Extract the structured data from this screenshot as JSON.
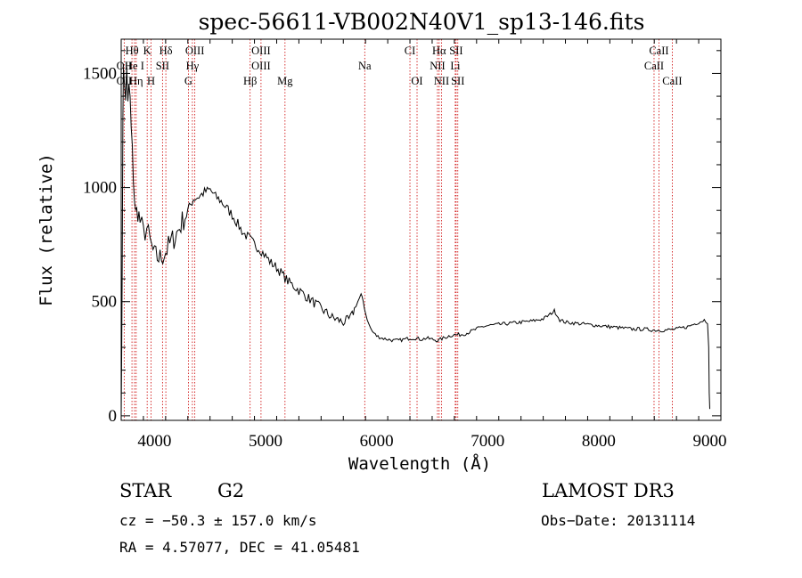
{
  "chart_data": {
    "type": "line",
    "title": "spec-56611-VB002N40V1_sp13-146.fits",
    "xlabel": "Wavelength (Å)",
    "ylabel": "Flux (relative)",
    "xlim": [
      3700,
      9100
    ],
    "ylim": [
      -20,
      1650
    ],
    "xticks": [
      4000,
      5000,
      6000,
      7000,
      8000,
      9000
    ],
    "yticks": [
      0,
      500,
      1000,
      1500
    ],
    "series": [
      {
        "name": "flux",
        "x": [
          3700,
          3705,
          3710,
          3715,
          3720,
          3730,
          3740,
          3750,
          3760,
          3770,
          3780,
          3790,
          3800,
          3810,
          3820,
          3830,
          3850,
          3870,
          3900,
          3930,
          3960,
          4000,
          4050,
          4100,
          4150,
          4200,
          4250,
          4300,
          4350,
          4400,
          4450,
          4500,
          4550,
          4600,
          4650,
          4700,
          4750,
          4800,
          4850,
          4900,
          4950,
          5000,
          5050,
          5100,
          5150,
          5200,
          5250,
          5300,
          5350,
          5400,
          5450,
          5500,
          5550,
          5600,
          5650,
          5700,
          5750,
          5780,
          5800,
          5830,
          5860,
          5880,
          5900,
          5930,
          5960,
          6000,
          6050,
          6100,
          6150,
          6200,
          6250,
          6300,
          6350,
          6400,
          6450,
          6500,
          6550,
          6600,
          6650,
          6700,
          6750,
          6800,
          6850,
          6900,
          6950,
          7000,
          7100,
          7200,
          7300,
          7400,
          7500,
          7550,
          7600,
          7620,
          7650,
          7700,
          7800,
          7900,
          8000,
          8100,
          8200,
          8300,
          8400,
          8500,
          8600,
          8700,
          8800,
          8900,
          8950,
          8980,
          8990,
          8995,
          9000
        ],
        "y": [
          0,
          300,
          700,
          1300,
          1500,
          1450,
          1400,
          1500,
          1350,
          1450,
          1380,
          1250,
          1150,
          1050,
          950,
          880,
          900,
          850,
          800,
          820,
          760,
          700,
          690,
          720,
          760,
          800,
          850,
          900,
          950,
          960,
          980,
          990,
          960,
          940,
          910,
          880,
          840,
          800,
          780,
          750,
          730,
          700,
          670,
          650,
          620,
          590,
          570,
          550,
          530,
          510,
          490,
          470,
          450,
          430,
          420,
          410,
          420,
          440,
          470,
          500,
          530,
          500,
          450,
          400,
          370,
          350,
          340,
          335,
          330,
          330,
          335,
          340,
          340,
          335,
          340,
          335,
          330,
          340,
          350,
          355,
          355,
          360,
          370,
          380,
          390,
          395,
          400,
          405,
          410,
          415,
          425,
          440,
          460,
          445,
          420,
          410,
          405,
          400,
          395,
          390,
          385,
          380,
          380,
          375,
          375,
          380,
          390,
          410,
          420,
          410,
          300,
          100,
          30
        ],
        "color": "#000000"
      }
    ],
    "lines": [
      {
        "label": "Hθ",
        "x": 3797,
        "row": 1
      },
      {
        "label": "OII",
        "x": 3727,
        "row": 2
      },
      {
        "label": "OII",
        "x": 3727,
        "row": 3
      },
      {
        "label": "He I",
        "x": 3820,
        "row": 2
      },
      {
        "label": "Hη",
        "x": 3835,
        "row": 3
      },
      {
        "label": "K",
        "x": 3934,
        "row": 1
      },
      {
        "label": "H",
        "x": 3969,
        "row": 3
      },
      {
        "label": "SII",
        "x": 4072,
        "row": 2
      },
      {
        "label": "Hδ",
        "x": 4102,
        "row": 1
      },
      {
        "label": "OIII",
        "x": 4363,
        "row": 1
      },
      {
        "label": "Hγ",
        "x": 4341,
        "row": 2
      },
      {
        "label": "G",
        "x": 4305,
        "row": 3
      },
      {
        "label": "OIII",
        "x": 4959,
        "row": 1
      },
      {
        "label": "OIII",
        "x": 4959,
        "row": 2
      },
      {
        "label": "Hβ",
        "x": 4861,
        "row": 3
      },
      {
        "label": "Mg",
        "x": 5175,
        "row": 3
      },
      {
        "label": "Na",
        "x": 5893,
        "row": 2
      },
      {
        "label": "CI",
        "x": 6300,
        "row": 1
      },
      {
        "label": "OI",
        "x": 6364,
        "row": 3
      },
      {
        "label": "Hα",
        "x": 6563,
        "row": 1
      },
      {
        "label": "SII",
        "x": 6716,
        "row": 1
      },
      {
        "label": "NII",
        "x": 6548,
        "row": 2
      },
      {
        "label": "NII",
        "x": 6584,
        "row": 3
      },
      {
        "label": "Li",
        "x": 6708,
        "row": 2
      },
      {
        "label": "SII",
        "x": 6731,
        "row": 3
      },
      {
        "label": "CaII",
        "x": 8542,
        "row": 1
      },
      {
        "label": "CaII",
        "x": 8498,
        "row": 2
      },
      {
        "label": "CaII",
        "x": 8662,
        "row": 3
      }
    ],
    "line_color": "#cc0000"
  },
  "info": {
    "class": "STAR",
    "subclass": "G2",
    "survey": "LAMOST DR3",
    "cz": "cz = −50.3 ± 157.0 km/s",
    "obs_date": "Obs−Date: 20131114",
    "coords": "RA =   4.57077, DEC =  41.05481"
  }
}
